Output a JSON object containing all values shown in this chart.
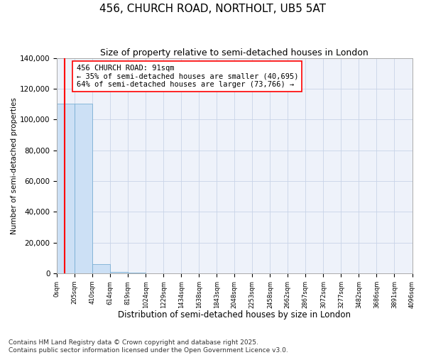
{
  "title": "456, CHURCH ROAD, NORTHOLT, UB5 5AT",
  "subtitle": "Size of property relative to semi-detached houses in London",
  "xlabel": "Distribution of semi-detached houses by size in London",
  "ylabel": "Number of semi-detached properties",
  "bin_edges": [
    0,
    205,
    410,
    614,
    819,
    1024,
    1229,
    1434,
    1638,
    1843,
    2048,
    2253,
    2458,
    2662,
    2867,
    3072,
    3277,
    3482,
    3686,
    3891,
    4096
  ],
  "bar_heights": [
    110500,
    110500,
    6200,
    1100,
    500,
    280,
    160,
    100,
    65,
    48,
    35,
    25,
    20,
    15,
    12,
    10,
    8,
    6,
    5,
    4
  ],
  "bar_color": "#cce0f5",
  "bar_edge_color": "#7aafd4",
  "property_size": 91,
  "property_label": "456 CHURCH ROAD: 91sqm",
  "smaller_pct": "35%",
  "smaller_count": "40,695",
  "larger_pct": "64%",
  "larger_count": "73,766",
  "vline_color": "red",
  "ylim": [
    0,
    140000
  ],
  "yticks": [
    0,
    20000,
    40000,
    60000,
    80000,
    100000,
    120000,
    140000
  ],
  "footer_line1": "Contains HM Land Registry data © Crown copyright and database right 2025.",
  "footer_line2": "Contains public sector information licensed under the Open Government Licence v3.0.",
  "title_fontsize": 11,
  "subtitle_fontsize": 9,
  "annotation_fontsize": 7.5,
  "footer_fontsize": 6.5,
  "grid_color": "#c8d4e8",
  "bg_color": "#eef2fa"
}
